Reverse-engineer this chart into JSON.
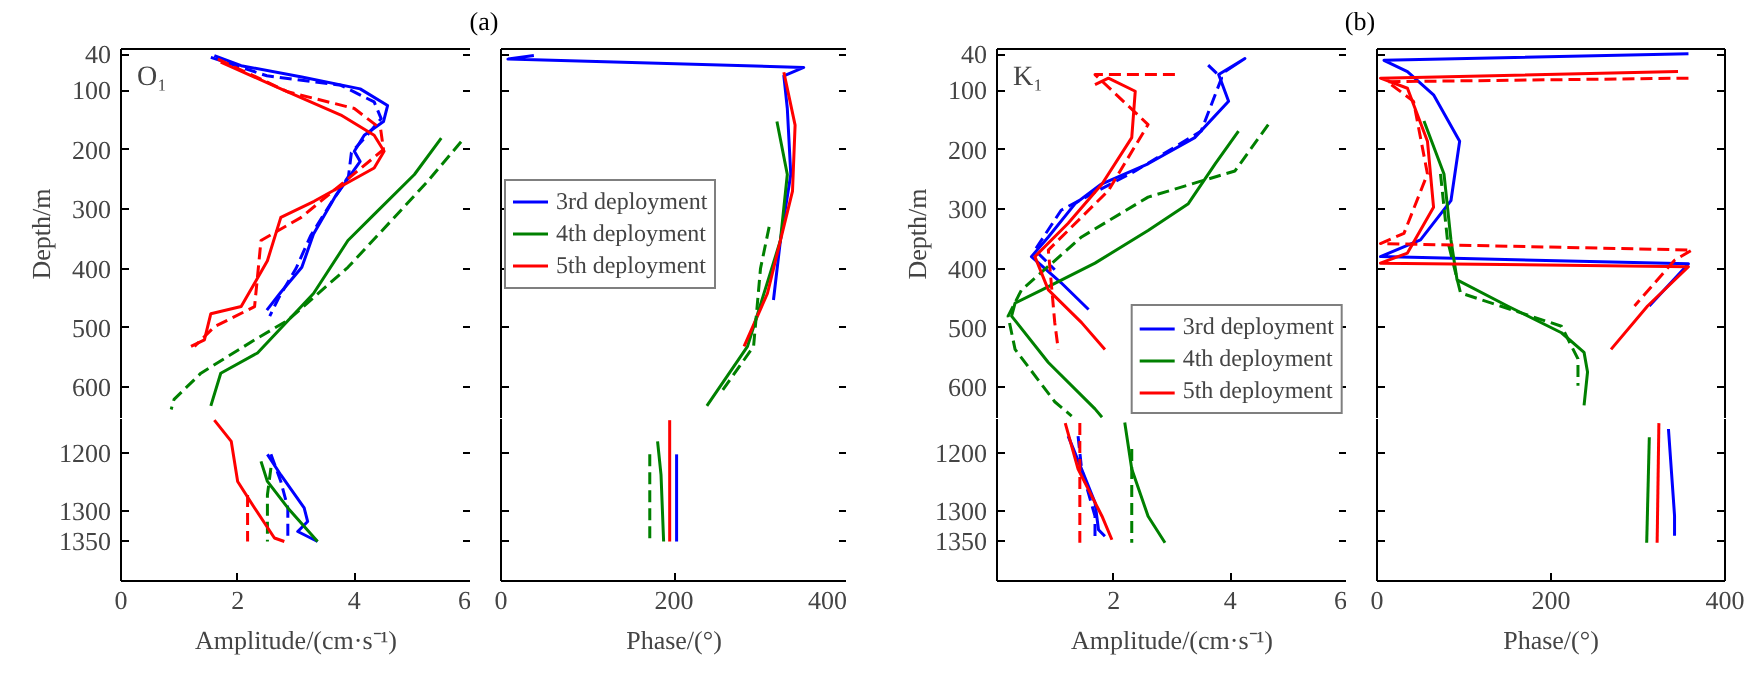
{
  "chart_data": [
    {
      "type": "line",
      "title": "(a)",
      "ylabel": "Depth/m",
      "annotations": [
        "O₁"
      ],
      "xlim": [
        0,
        6
      ],
      "ylim": [
        653,
        31
      ],
      "yticks": [
        40,
        100,
        200,
        300,
        400,
        500,
        600
      ],
      "tick_labels": "y",
      "series": [
        {
          "color": "#0000ff",
          "line_style": "solid",
          "x": [
            1.6,
            2.06,
            3.1,
            4.1,
            4.57,
            4.5,
            4.17,
            4.0,
            4.1,
            3.66,
            3.3,
            3.1,
            2.74,
            2.5
          ],
          "values": [
            42,
            59,
            78,
            98,
            126,
            153,
            176,
            203,
            220,
            281,
            342,
            398,
            440,
            470
          ]
        },
        {
          "color": "#0000ff",
          "line_style": "dashed",
          "x": [
            1.54,
            2.5,
            3.77,
            4.34,
            4.46,
            4.2,
            3.95,
            3.9,
            3.6,
            3.25,
            3.0,
            2.7,
            2.55
          ],
          "values": [
            45,
            76,
            92,
            120,
            148,
            178,
            205,
            245,
            290,
            345,
            400,
            450,
            480
          ]
        },
        {
          "color": "#008000",
          "line_style": "solid",
          "x": [
            5.49,
            5.03,
            4.34,
            3.89,
            3.3,
            2.34,
            1.71,
            1.54
          ],
          "values": [
            181,
            242,
            309,
            353,
            442,
            542,
            576,
            631
          ]
        },
        {
          "color": "#008000",
          "line_style": "dashed",
          "x": [
            5.83,
            5.26,
            4.63,
            3.89,
            2.86,
            2.29,
            1.37,
            0.91,
            0.86
          ],
          "values": [
            187,
            253,
            320,
            398,
            487,
            520,
            576,
            620,
            637
          ]
        },
        {
          "color": "#ff0000",
          "line_style": "solid",
          "x": [
            1.71,
            2.74,
            3.77,
            4.34,
            4.51,
            4.34,
            3.31,
            2.74,
            2.51,
            2.06,
            1.54,
            1.43,
            1.2
          ],
          "values": [
            53,
            98,
            142,
            176,
            203,
            231,
            287,
            314,
            387,
            464,
            476,
            520,
            531
          ]
        },
        {
          "color": "#ff0000",
          "line_style": "dashed",
          "x": [
            1.66,
            2.86,
            4.0,
            4.45,
            4.5,
            3.09,
            2.4,
            2.29,
            1.6,
            1.26
          ],
          "values": [
            48,
            103,
            131,
            165,
            200,
            314,
            353,
            464,
            498,
            531
          ]
        }
      ]
    },
    {
      "type": "line",
      "xlabel": "Amplitude/(cm·s⁻¹)",
      "xlim": [
        0,
        6
      ],
      "xticks": [
        0,
        2,
        4,
        6
      ],
      "ylim": [
        1418,
        1143
      ],
      "yticks": [
        1200,
        1300,
        1350
      ],
      "series": [
        {
          "color": "#0000ff",
          "line_style": "solid",
          "x": [
            2.51,
            2.74,
            3.14,
            3.2,
            3.03,
            3.37
          ],
          "values": [
            1203,
            1238,
            1294,
            1317,
            1334,
            1351
          ]
        },
        {
          "color": "#0000ff",
          "line_style": "dashed",
          "x": [
            2.57,
            2.74,
            2.86,
            2.86
          ],
          "values": [
            1203,
            1249,
            1294,
            1345
          ]
        },
        {
          "color": "#008000",
          "line_style": "solid",
          "x": [
            2.4,
            2.51,
            2.86,
            3.37
          ],
          "values": [
            1215,
            1249,
            1294,
            1351
          ]
        },
        {
          "color": "#008000",
          "line_style": "dashed",
          "x": [
            2.57,
            2.51,
            2.51
          ],
          "values": [
            1226,
            1272,
            1351
          ]
        },
        {
          "color": "#ff0000",
          "line_style": "solid",
          "x": [
            1.6,
            1.89,
            2.0,
            2.29,
            2.63,
            2.8
          ],
          "values": [
            1145,
            1181,
            1249,
            1294,
            1345,
            1351
          ]
        },
        {
          "color": "#ff0000",
          "line_style": "dashed",
          "x": [
            2.17,
            2.17
          ],
          "values": [
            1272,
            1351
          ]
        }
      ]
    },
    {
      "type": "line",
      "xlim": [
        0,
        400
      ],
      "ylim": [
        653,
        31
      ],
      "yticks": [
        40,
        100,
        200,
        300,
        400,
        500,
        600
      ],
      "tick_labels": false,
      "legend": "left",
      "series": [
        {
          "name": "3rd deployment",
          "color": "#0000ff",
          "line_style": "solid",
          "x": [
            38,
            8,
            350,
            327,
            331,
            335,
            323,
            315
          ],
          "values": [
            42,
            48,
            62,
            76,
            131,
            242,
            353,
            453
          ]
        },
        {
          "name": "4th deployment",
          "color": "#008000",
          "line_style": "solid",
          "x": [
            319,
            331,
            323,
            285,
            238
          ],
          "values": [
            153,
            242,
            353,
            531,
            631
          ]
        },
        {
          "name": "5th deployment",
          "color": "#ff0000",
          "line_style": "solid",
          "x": [
            327,
            340,
            337,
            308,
            281
          ],
          "values": [
            70,
            159,
            270,
            442,
            531
          ]
        },
        {
          "color": "#008000",
          "line_style": "dashed",
          "x": [
            310,
            300,
            292,
            254
          ],
          "values": [
            330,
            400,
            531,
            609
          ]
        }
      ]
    },
    {
      "type": "line",
      "xlabel": "Phase/(°)",
      "xlim": [
        0,
        400
      ],
      "xticks": [
        0,
        200,
        400
      ],
      "ylim": [
        1418,
        1143
      ],
      "yticks": [
        1200,
        1300,
        1350
      ],
      "tick_labels": "x",
      "series": [
        {
          "color": "#0000ff",
          "line_style": "solid",
          "x": [
            203,
            203
          ],
          "values": [
            1203,
            1351
          ]
        },
        {
          "color": "#008000",
          "line_style": "solid",
          "x": [
            181,
            185,
            188
          ],
          "values": [
            1181,
            1238,
            1351
          ]
        },
        {
          "color": "#008000",
          "line_style": "dashed",
          "x": [
            172,
            172
          ],
          "values": [
            1203,
            1351
          ]
        },
        {
          "color": "#ff0000",
          "line_style": "solid",
          "x": [
            195,
            195
          ],
          "values": [
            1145,
            1351
          ]
        }
      ]
    },
    {
      "type": "line",
      "title": "(b)",
      "ylabel": "Depth/m",
      "annotations": [
        "K₁"
      ],
      "xlim": [
        0,
        6
      ],
      "ylim": [
        653,
        31
      ],
      "yticks": [
        40,
        100,
        200,
        300,
        400,
        500,
        600
      ],
      "tick_labels": "y",
      "legend": "bottom right",
      "series": [
        {
          "name": "3rd deployment",
          "color": "#0000ff",
          "line_style": "solid",
          "x": [
            3.91,
            4.25,
            3.8,
            3.97,
            3.39,
            2.59,
            1.79,
            1.34,
            0.88,
            0.59,
            1.1,
            1.57
          ],
          "values": [
            69,
            47,
            74,
            119,
            180,
            224,
            258,
            291,
            347,
            380,
            424,
            469
          ]
        },
        {
          "color": "#0000ff",
          "line_style": "dashed",
          "x": [
            3.62,
            3.85,
            3.5,
            2.37,
            1.1,
            0.65,
            0.99
          ],
          "values": [
            58,
            80,
            169,
            236,
            302,
            369,
            402
          ]
        },
        {
          "name": "4th deployment",
          "color": "#008000",
          "line_style": "solid",
          "x": [
            4.14,
            3.74,
            3.28,
            2.59,
            1.68,
            0.77,
            0.31,
            0.25,
            0.88,
            1.68,
            1.8
          ],
          "values": [
            169,
            224,
            291,
            336,
            391,
            436,
            458,
            480,
            558,
            636,
            650
          ]
        },
        {
          "color": "#008000",
          "line_style": "dashed",
          "x": [
            4.65,
            4.08,
            2.59,
            1.45,
            0.42,
            0.19,
            0.31,
            0.99,
            1.28
          ],
          "values": [
            158,
            236,
            280,
            347,
            436,
            480,
            536,
            624,
            648
          ]
        },
        {
          "name": "5th deployment",
          "color": "#ff0000",
          "line_style": "solid",
          "x": [
            1.68,
            1.91,
            2.37,
            2.31,
            1.8,
            1.22,
            0.65,
            0.88,
            1.45,
            1.85
          ],
          "values": [
            91,
            80,
            102,
            180,
            258,
            324,
            380,
            436,
            491,
            536
          ]
        },
        {
          "color": "#ff0000",
          "line_style": "dashed",
          "x": [
            3.05,
            1.68,
            2.59,
            1.91,
            0.88,
            0.99,
            1.05
          ],
          "values": [
            74,
            74,
            158,
            269,
            369,
            491,
            536
          ]
        }
      ]
    },
    {
      "type": "line",
      "xlabel": "Amplitude/(cm·s⁻¹)",
      "xlim": [
        0,
        6
      ],
      "xticks": [
        2,
        4,
        6
      ],
      "ylim": [
        1418,
        1143
      ],
      "yticks": [
        1200,
        1300,
        1350
      ],
      "series": [
        {
          "color": "#0000ff",
          "line_style": "solid",
          "x": [
            1.22,
            1.45,
            1.68,
            1.74,
            1.85
          ],
          "values": [
            1172,
            1228,
            1285,
            1331,
            1342
          ]
        },
        {
          "color": "#0000ff",
          "line_style": "dashed",
          "x": [
            1.39,
            1.45,
            1.68,
            1.68
          ],
          "values": [
            1172,
            1228,
            1308,
            1345
          ]
        },
        {
          "color": "#008000",
          "line_style": "solid",
          "x": [
            2.19,
            2.31,
            2.59,
            2.88
          ],
          "values": [
            1149,
            1228,
            1308,
            1353
          ]
        },
        {
          "color": "#008000",
          "line_style": "dashed",
          "x": [
            2.31,
            2.31
          ],
          "values": [
            1194,
            1353
          ]
        },
        {
          "color": "#ff0000",
          "line_style": "solid",
          "x": [
            1.17,
            1.39,
            1.8,
            1.97
          ],
          "values": [
            1150,
            1228,
            1308,
            1348
          ]
        },
        {
          "color": "#ff0000",
          "line_style": "dashed",
          "x": [
            1.42,
            1.42
          ],
          "values": [
            1150,
            1353
          ]
        }
      ]
    },
    {
      "type": "line",
      "xlim": [
        0,
        400
      ],
      "ylim": [
        653,
        31
      ],
      "yticks": [
        40,
        100,
        200,
        300,
        400,
        500,
        600
      ],
      "tick_labels": false,
      "series": [
        {
          "color": "#0000ff",
          "line_style": "solid",
          "x": [
            358,
            8,
            35,
            65,
            95,
            85,
            50,
            4,
            358,
            313
          ],
          "values": [
            39,
            50,
            69,
            108,
            186,
            286,
            352,
            380,
            392,
            463
          ]
        },
        {
          "color": "#008000",
          "line_style": "solid",
          "x": [
            54,
            77,
            85,
            92,
            150,
            212,
            238,
            242,
            238
          ],
          "values": [
            152,
            241,
            352,
            419,
            463,
            508,
            541,
            574,
            630
          ]
        },
        {
          "color": "#008000",
          "line_style": "dashed",
          "x": [
            73,
            81,
            96,
            212,
            231,
            231
          ],
          "values": [
            241,
            352,
            441,
            497,
            552,
            597
          ]
        },
        {
          "color": "#ff0000",
          "line_style": "solid",
          "x": [
            346,
            4,
            35,
            58,
            65,
            35,
            4,
            358,
            311,
            269
          ],
          "values": [
            69,
            80,
            97,
            186,
            297,
            374,
            391,
            397,
            463,
            536
          ]
        },
        {
          "color": "#ff0000",
          "line_style": "dashed",
          "x": [
            358,
            12,
            42,
            58,
            31,
            4,
            362,
            342,
            296
          ],
          "values": [
            80,
            86,
            119,
            241,
            341,
            358,
            369,
            386,
            463
          ]
        }
      ]
    },
    {
      "type": "line",
      "xlabel": "Phase/(°)",
      "xlim": [
        0,
        400
      ],
      "xticks": [
        0,
        200,
        400
      ],
      "ylim": [
        1418,
        1143
      ],
      "yticks": [
        1200,
        1300,
        1350
      ],
      "tick_labels": "x",
      "series": [
        {
          "color": "#0000ff",
          "line_style": "solid",
          "x": [
            335,
            342,
            342
          ],
          "values": [
            1160,
            1307,
            1341
          ]
        },
        {
          "color": "#008000",
          "line_style": "solid",
          "x": [
            313,
            310
          ],
          "values": [
            1174,
            1353
          ]
        },
        {
          "color": "#ff0000",
          "line_style": "solid",
          "x": [
            324,
            322
          ],
          "values": [
            1150,
            1353
          ]
        }
      ]
    }
  ]
}
